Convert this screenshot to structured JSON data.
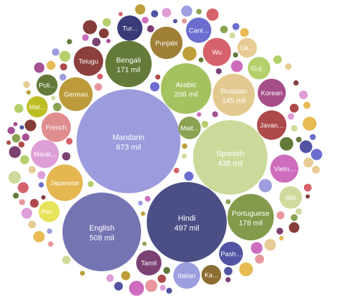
{
  "chart_data": {
    "type": "bubble",
    "title": "",
    "unit": "mil",
    "bubbles": [
      {
        "label": "Mandarin",
        "value": 873,
        "value_text": "873 mil",
        "color": "#9b9bdd"
      },
      {
        "label": "Hindi",
        "value": 497,
        "value_text": "497 mil",
        "color": "#4b4f86"
      },
      {
        "label": "English",
        "value": 508,
        "value_text": "508 mil",
        "color": "#7574b3"
      },
      {
        "label": "Spanish",
        "value": 438,
        "value_text": "438 mil",
        "color": "#cbd99a"
      },
      {
        "label": "Arabic",
        "value": 206,
        "value_text": "206 mil",
        "color": "#a5c261"
      },
      {
        "label": "Bengali",
        "value": 171,
        "value_text": "171 mil",
        "color": "#647a39"
      },
      {
        "label": "Russian",
        "value": 145,
        "value_text": "145 mil",
        "color": "#e2c98f"
      },
      {
        "label": "Portuguese",
        "value": 178,
        "value_text": "178 mil",
        "color": "#849a4c"
      },
      {
        "label": "Japanese",
        "color": "#e4b751"
      },
      {
        "label": "German",
        "color": "#bd9b3b"
      },
      {
        "label": "French",
        "color": "#df8d8f"
      },
      {
        "label": "Punjabi",
        "color": "#9f7f36"
      },
      {
        "label": "Korean",
        "color": "#a64e8a"
      },
      {
        "label": "Telugu",
        "color": "#8c3f3c"
      },
      {
        "label": "Wu",
        "color": "#d6616b"
      },
      {
        "label": "Javan...",
        "color": "#ad494a"
      },
      {
        "label": "Vietn...",
        "color": "#ce6dbd"
      },
      {
        "label": "Marat...",
        "color": "#de9ed6"
      },
      {
        "label": "Tamil",
        "color": "#7b4173"
      },
      {
        "label": "Italian",
        "color": "#9c9ede"
      },
      {
        "label": "Turkish",
        "display": "Tur...",
        "color": "#393b79"
      },
      {
        "label": "Cant...",
        "color": "#6b6ecf"
      },
      {
        "label": "Poli...",
        "color": "#637939"
      },
      {
        "label": "Mal...",
        "color": "#bcbd22"
      },
      {
        "label": "Maithili",
        "display": "Mait...",
        "color": "#8ca252"
      },
      {
        "label": "Pash...",
        "color": "#5254a3"
      },
      {
        "label": "Ka...",
        "color": "#8c6d31"
      },
      {
        "label": "Uk...",
        "color": "#e7cb94"
      },
      {
        "label": "Guj...",
        "color": "#b5cf6b"
      },
      {
        "label": "Min",
        "color": "#cedb9c"
      },
      {
        "label": "Per...",
        "color": "#e7e35a"
      }
    ]
  }
}
